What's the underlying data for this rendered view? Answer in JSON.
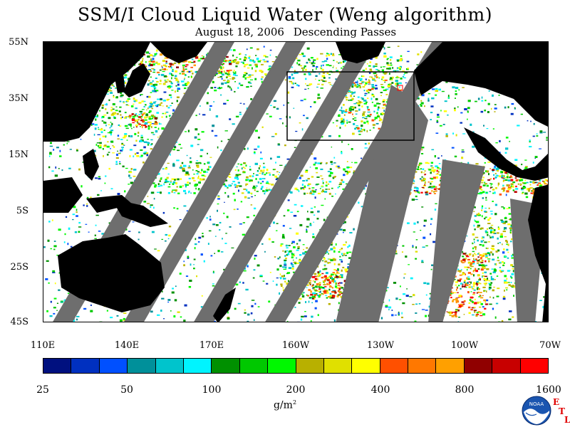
{
  "title": "SSM/I Cloud Liquid Water (Weng algorithm)",
  "subtitle": {
    "date": "August 18, 2006",
    "passes": "Descending Passes"
  },
  "map": {
    "lat_labels": [
      "55N",
      "35N",
      "15N",
      "5S",
      "25S",
      "45S"
    ],
    "lon_labels": [
      "110E",
      "140E",
      "170E",
      "160W",
      "130W",
      "100W",
      "70W"
    ],
    "land_color": "#000000",
    "missing_color": "#6e6e6e",
    "ocean_clear_color": "#ffffff",
    "highlight_box_color": "#000000",
    "marker_color": "#ff0000"
  },
  "colorbar": {
    "labels": [
      "25",
      "50",
      "100",
      "200",
      "400",
      "800",
      "1600"
    ],
    "units": "g/m",
    "units_sup": "2",
    "colors": [
      "#00107f",
      "#0030c0",
      "#0050ff",
      "#00909a",
      "#00c4cc",
      "#00f4ff",
      "#009000",
      "#00c800",
      "#00f800",
      "#b8b000",
      "#e0e000",
      "#ffff00",
      "#ff5000",
      "#ff7800",
      "#ffa000",
      "#900000",
      "#c80000",
      "#ff0000"
    ]
  },
  "logo": {
    "name": "noaa-logo",
    "text": "NOAA",
    "etl": [
      "E",
      "T",
      "L"
    ]
  }
}
